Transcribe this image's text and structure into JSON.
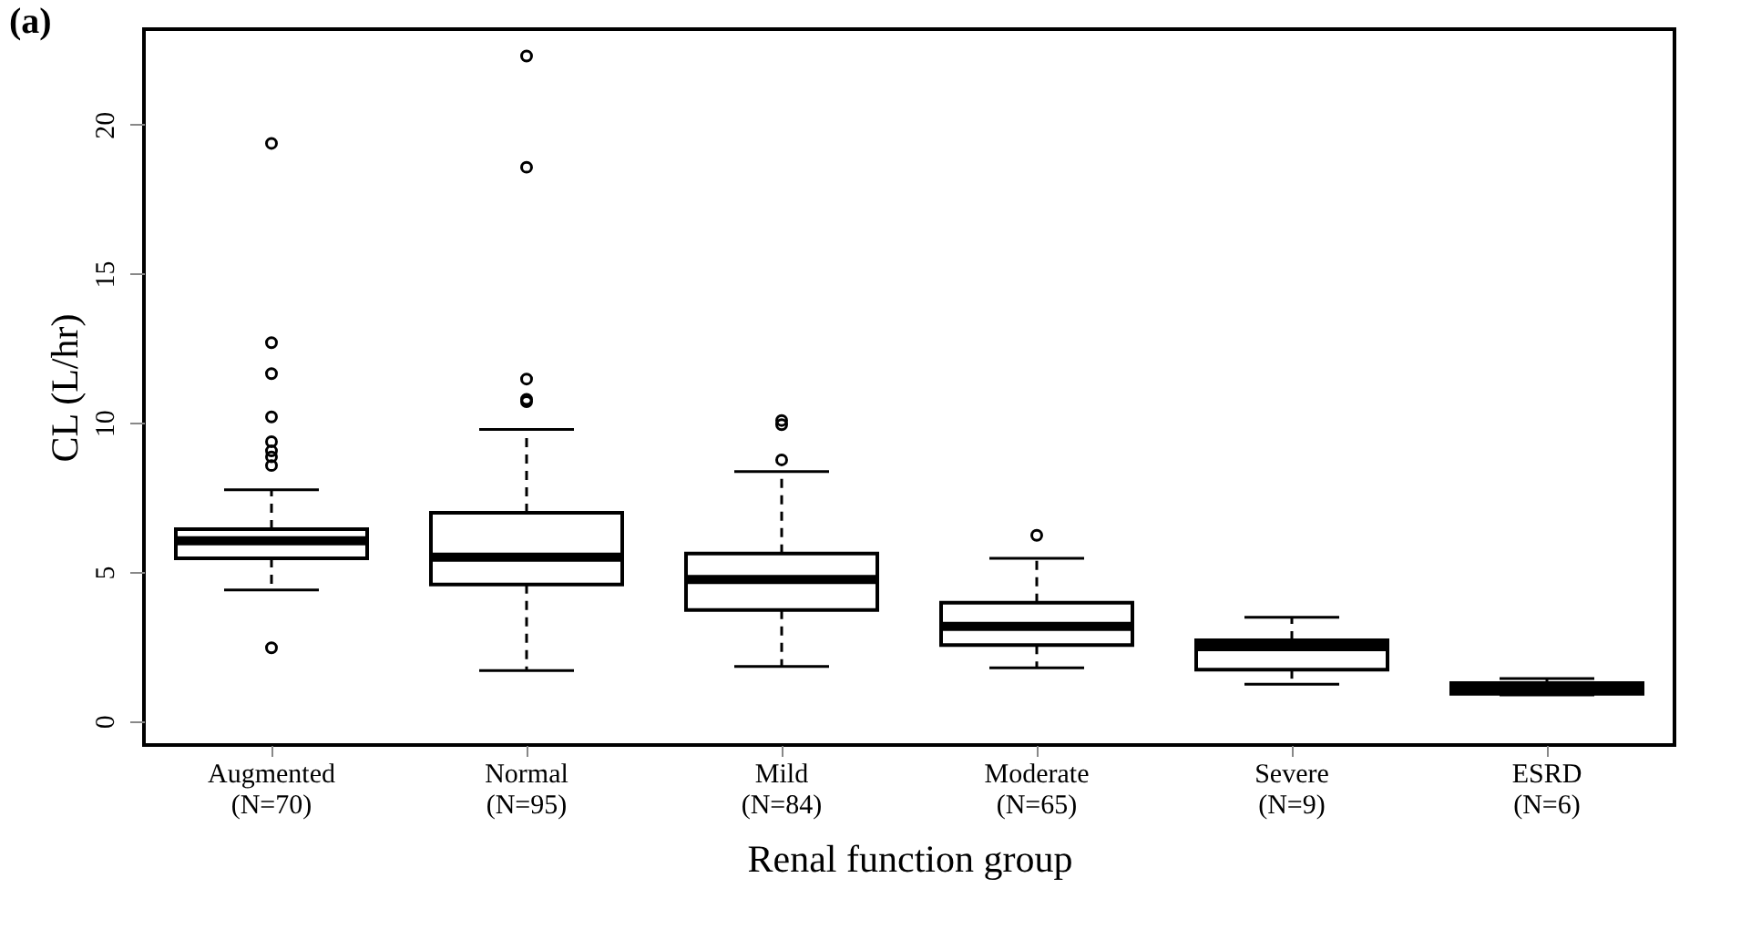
{
  "chart_data": {
    "type": "box",
    "title": "(a)",
    "xlabel": "Renal function group",
    "ylabel": "CL (L/hr)",
    "categories": [
      "Augmented\n(N=70)",
      "Normal\n(N=95)",
      "Mild\n(N=84)",
      "Moderate\n(N=65)",
      "Severe\n(N=9)",
      "ESRD\n(N=6)"
    ],
    "boxes": [
      {
        "low": 4.4,
        "q1": 5.46,
        "median": 6.05,
        "q3": 6.44,
        "high": 7.76,
        "outliers": [
          19.37,
          12.69,
          11.65,
          10.2,
          9.37,
          9.06,
          8.86,
          8.57,
          2.46
        ]
      },
      {
        "low": 1.7,
        "q1": 4.58,
        "median": 5.5,
        "q3": 6.99,
        "high": 9.78,
        "outliers": [
          22.3,
          18.57,
          11.47,
          10.79,
          10.71
        ]
      },
      {
        "low": 1.83,
        "q1": 3.73,
        "median": 4.75,
        "q3": 5.62,
        "high": 8.37,
        "outliers": [
          10.08,
          9.94,
          8.76
        ]
      },
      {
        "low": 1.79,
        "q1": 2.55,
        "median": 3.18,
        "q3": 3.97,
        "high": 5.46,
        "outliers": [
          6.23
        ]
      },
      {
        "low": 1.24,
        "q1": 1.73,
        "median": 2.5,
        "q3": 2.71,
        "high": 3.48
      },
      {
        "low": 0.88,
        "q1": 0.92,
        "median": 1.08,
        "q3": 1.28,
        "high": 1.43
      }
    ],
    "ylim": [
      -0.8,
      23.2
    ],
    "yticks": [
      0,
      5,
      10,
      15,
      20
    ],
    "grid": false,
    "marker": "circle",
    "line_style": "dashed"
  }
}
